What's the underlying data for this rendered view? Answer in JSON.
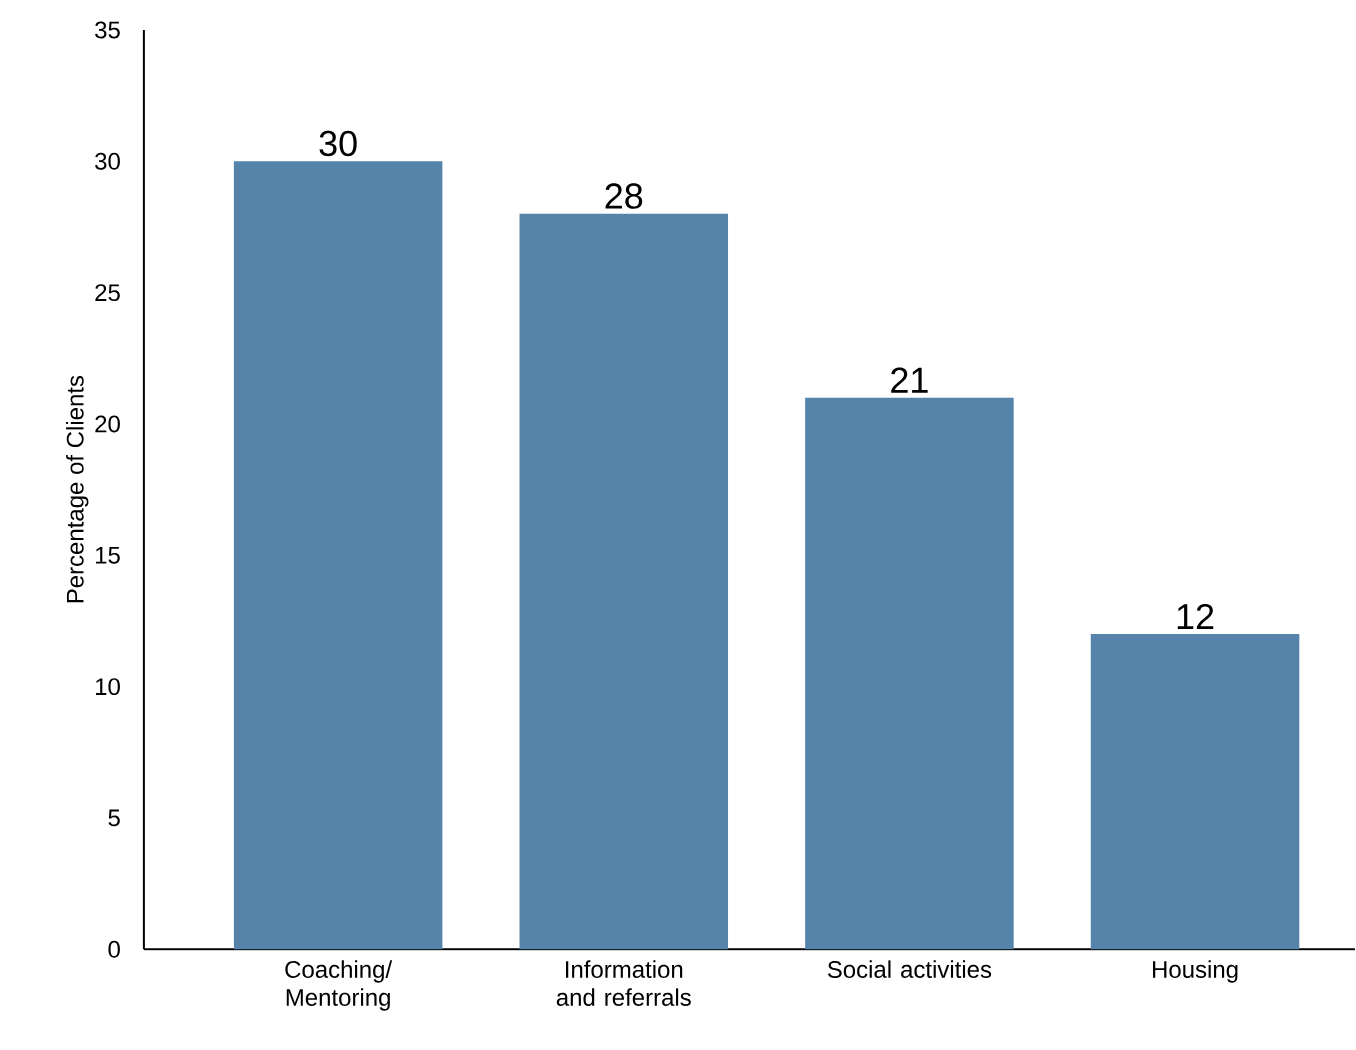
{
  "chart_data": {
    "type": "bar",
    "ylabel": "Percentage of Clients",
    "categories": [
      "Coaching/ Mentoring",
      "Information and referrals",
      "Social activities",
      "Housing"
    ],
    "values": [
      30,
      28,
      21,
      12
    ],
    "color": "#5683aa",
    "ylim": [
      0,
      35
    ],
    "yticks": [
      0,
      5,
      10,
      15,
      20,
      25,
      30,
      35
    ],
    "data_labels": true
  }
}
